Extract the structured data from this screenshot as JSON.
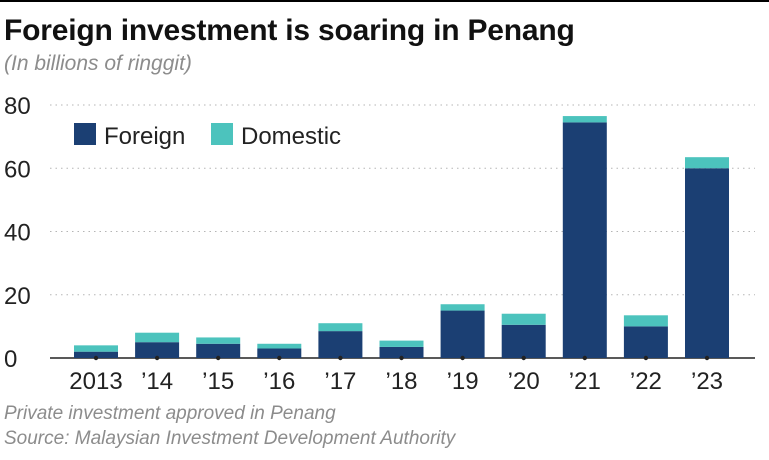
{
  "title": "Foreign investment is soaring in Penang",
  "subtitle": "(In billions of ringgit)",
  "notes": {
    "description": "Private investment approved in Penang",
    "source": "Source: Malaysian Investment Development Authority"
  },
  "colors": {
    "foreign": "#1b3f73",
    "domestic": "#4cc3bd"
  },
  "chart_data": {
    "type": "bar",
    "stacked": true,
    "categories": [
      "2013",
      "’14",
      "’15",
      "’16",
      "’17",
      "’18",
      "’19",
      "’20",
      "’21",
      "’22",
      "’23"
    ],
    "series": [
      {
        "name": "Foreign",
        "values": [
          2,
          5,
          4.5,
          3,
          8.5,
          3.5,
          15,
          10.5,
          74.5,
          10,
          60
        ]
      },
      {
        "name": "Domestic",
        "values": [
          2,
          3,
          2,
          1.5,
          2.5,
          2,
          2,
          3.5,
          2,
          3.5,
          3.5
        ]
      }
    ],
    "yticks": [
      0,
      20,
      40,
      60,
      80
    ],
    "ylim": [
      0,
      80
    ],
    "grid": true,
    "legend": "top-left"
  }
}
